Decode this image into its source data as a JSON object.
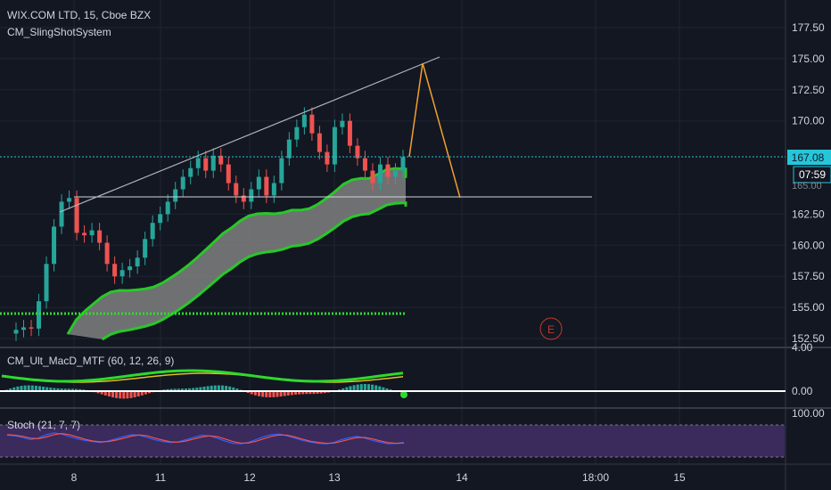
{
  "header": {
    "symbol_line": "WIX.COM LTD, 15, Cboe BZX",
    "study_name": "CM_SlingShotSystem"
  },
  "indicators": {
    "macd_label": "CM_Ult_MacD_MTF (60, 12, 26, 9)",
    "stoch_label": "Stoch (21, 7, 7)"
  },
  "price_marker": {
    "last_price": "167.08",
    "countdown": "07:59",
    "hidden_label": "165.00"
  },
  "event_marker": "E",
  "colors": {
    "background": "#131722",
    "up": "#26a69a",
    "down": "#ef5350",
    "band_fill": "#808080",
    "band_edge": "#28c828",
    "trendline": "#b2b5be",
    "projection": "#f0a030",
    "price_line": "#26c6da",
    "stoch_bg": "#3b2a5c"
  },
  "chart_data": [
    {
      "type": "candlestick",
      "name": "price",
      "yticks": [
        "177.50",
        "175.00",
        "172.50",
        "170.00",
        "167.08",
        "162.50",
        "160.00",
        "157.50",
        "155.00",
        "152.50"
      ],
      "ylim": [
        152.5,
        177.5
      ],
      "xticks": [
        "8",
        "11",
        "12",
        "13",
        "14",
        "18:00",
        "15"
      ],
      "close_approx": [
        153.2,
        153.4,
        153.3,
        155.5,
        158.5,
        161.5,
        163.5,
        163.8,
        161.0,
        160.8,
        161.2,
        160.2,
        158.5,
        157.5,
        158.0,
        158.3,
        159.0,
        160.5,
        161.8,
        162.5,
        163.5,
        164.5,
        165.5,
        166.2,
        167.0,
        166.0,
        167.2,
        166.5,
        165.0,
        164.0,
        163.5,
        164.5,
        165.5,
        164.0,
        165.0,
        167.0,
        168.5,
        169.5,
        170.5,
        169.0,
        167.5,
        166.5,
        169.5,
        170.0,
        168.0,
        167.0,
        166.0,
        165.0,
        166.5,
        165.5,
        166.0,
        167.08
      ],
      "horizontal_levels": [
        167.08,
        164.0,
        155.0
      ],
      "trendline": [
        [
          0,
          163.5
        ],
        [
          8,
          175.2
        ]
      ],
      "projection": [
        [
          0,
          167.0
        ],
        [
          1,
          174.5
        ],
        [
          2,
          164.0
        ]
      ]
    },
    {
      "type": "line",
      "name": "CM_Ult_MacD_MTF",
      "ylim": [
        -1,
        4
      ],
      "yticks": [
        "4.00",
        "0.00"
      ]
    },
    {
      "type": "line",
      "name": "Stoch",
      "ylim": [
        0,
        100
      ],
      "yticks": [
        "100.00"
      ],
      "k_approx": [
        70,
        68,
        62,
        55,
        60,
        72,
        78,
        74,
        65,
        58,
        52,
        48,
        45,
        50,
        58,
        66,
        72,
        70,
        62,
        54,
        48,
        45,
        47,
        55,
        63,
        70,
        68,
        60,
        50,
        42,
        40,
        45,
        55,
        65,
        72,
        74,
        68,
        60,
        52,
        46,
        42,
        40,
        45,
        55,
        62,
        66,
        60,
        52,
        45,
        40,
        42,
        45
      ],
      "d_approx": [
        72,
        70,
        66,
        60,
        58,
        64,
        72,
        76,
        72,
        64,
        56,
        50,
        47,
        48,
        53,
        60,
        67,
        71,
        68,
        60,
        53,
        47,
        46,
        50,
        57,
        64,
        68,
        65,
        57,
        48,
        43,
        43,
        49,
        58,
        66,
        71,
        70,
        64,
        56,
        49,
        45,
        42,
        43,
        49,
        56,
        62,
        62,
        57,
        50,
        44,
        42,
        43
      ]
    }
  ]
}
